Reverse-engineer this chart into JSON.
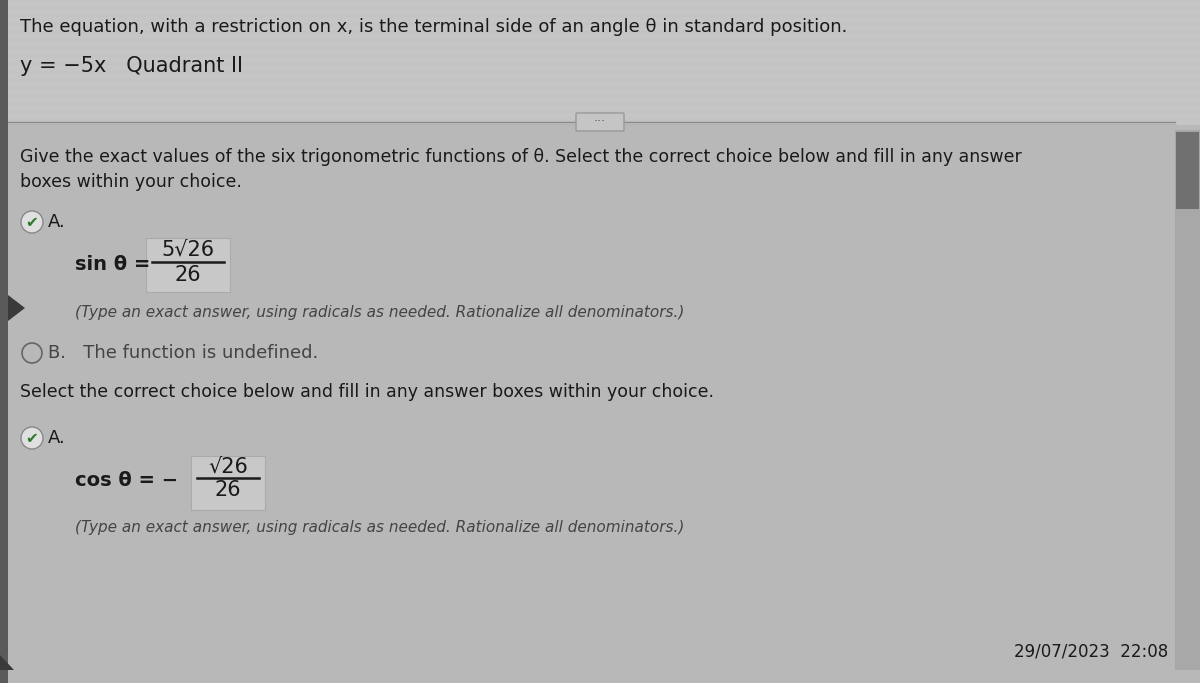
{
  "bg_color": "#b8b8b8",
  "top_panel_color": "#c8c8c8",
  "main_panel_color": "#cecece",
  "grid_color": "#bbbbbb",
  "title_text": "The equation, with a restriction on x, is the terminal side of an angle θ in standard position.",
  "equation_text": "y = −5x   Quadrant II",
  "give_text": "Give the exact values of the six trigonometric functions of θ. Select the correct choice below and fill in any answer",
  "boxes_text": "boxes within your choice.",
  "sin_label": "sin θ =",
  "sin_numerator": "5√26",
  "sin_denominator": "26",
  "type_note1": "(Type an exact answer, using radicals as needed. Rationalize all denominators.)",
  "radio_B_text": "B.   The function is undefined.",
  "select_text": "Select the correct choice below and fill in any answer boxes within your choice.",
  "cos_prefix": "cos θ = −",
  "cos_numerator": "√26",
  "cos_denominator": "26",
  "type_note2": "(Type an exact answer, using radicals as needed. Rationalize all denominators.)",
  "datetime_text": "29/07/2023  22:08",
  "font_color": "#1a1a1a",
  "light_font_color": "#444444",
  "checkmark_color": "#2d7a2d",
  "scrollbar_bg": "#909090",
  "scrollbar_thumb": "#686868",
  "separator_color": "#999999"
}
